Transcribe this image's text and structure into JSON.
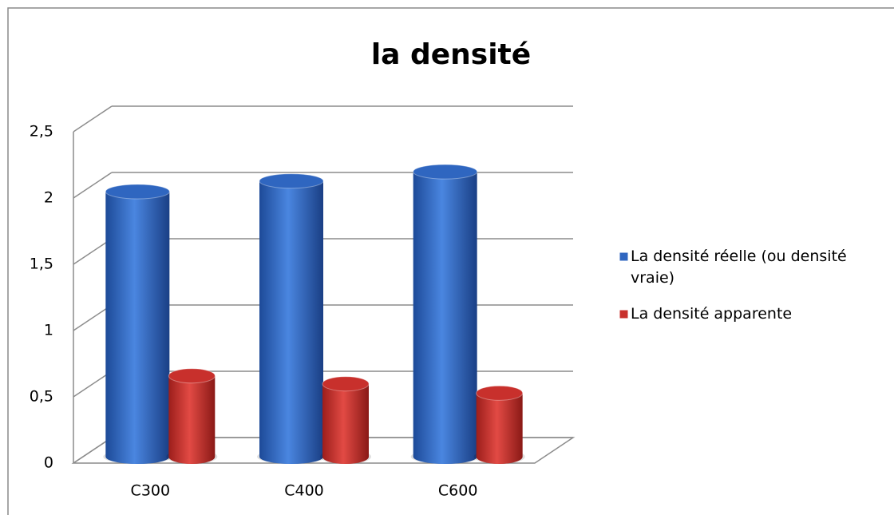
{
  "chart_data": {
    "type": "bar3d",
    "title": "la densité",
    "categories": [
      "C300",
      "C400",
      "C600"
    ],
    "series": [
      {
        "name": "La densité réelle  (ou densité vraie)",
        "color": "#2f66c0",
        "values": [
          2.0,
          2.08,
          2.15
        ]
      },
      {
        "name": "La densité apparente",
        "color": "#c8302c",
        "values": [
          0.61,
          0.55,
          0.48
        ]
      }
    ],
    "ylim": [
      0,
      2.5
    ],
    "yticks": [
      0,
      {
        "value": 0.5,
        "label": "0,5"
      },
      1,
      {
        "value": 1.5,
        "label": "1,5"
      },
      2,
      {
        "value": 2.5,
        "label": "2,5"
      }
    ],
    "grid": true,
    "legend": "right"
  }
}
